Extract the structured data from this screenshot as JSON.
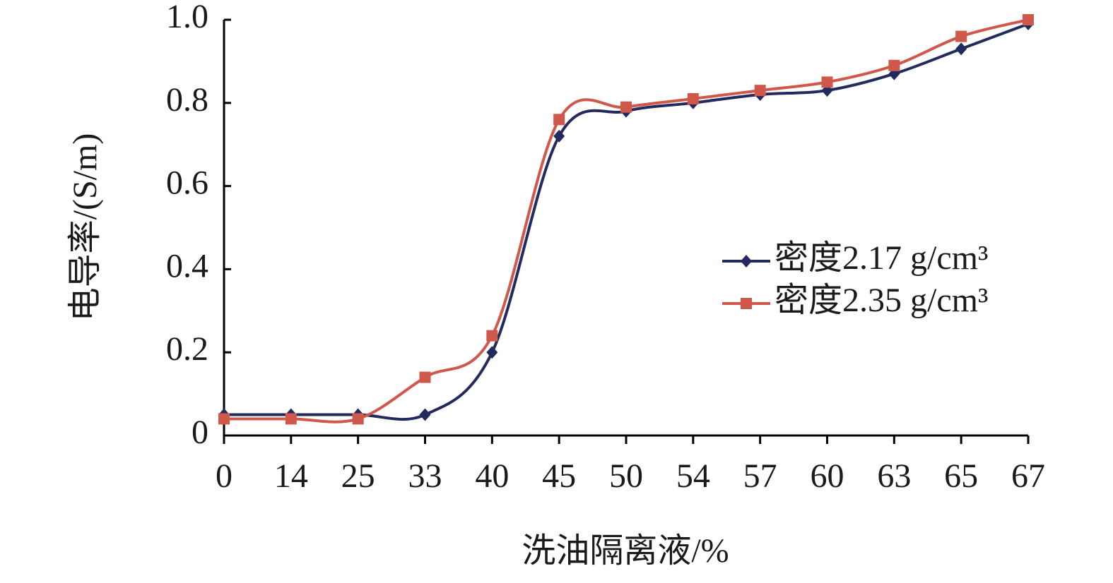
{
  "chart_data": {
    "type": "line",
    "x_label": "洗油隔离液/%",
    "y_label": "电导率/(S/m)",
    "categories": [
      "0",
      "14",
      "25",
      "33",
      "40",
      "45",
      "50",
      "54",
      "57",
      "60",
      "63",
      "65",
      "67"
    ],
    "series": [
      {
        "name": "密度2.17 g/cm³",
        "color": "#232a5e",
        "marker": "diamond",
        "values": [
          0.05,
          0.05,
          0.05,
          0.05,
          0.2,
          0.72,
          0.78,
          0.8,
          0.82,
          0.83,
          0.87,
          0.93,
          0.99
        ]
      },
      {
        "name": "密度2.35 g/cm³",
        "color": "#d0584a",
        "marker": "square",
        "values": [
          0.04,
          0.04,
          0.04,
          0.14,
          0.24,
          0.76,
          0.79,
          0.81,
          0.83,
          0.85,
          0.89,
          0.96,
          1.0
        ]
      }
    ],
    "ylim": [
      0,
      1
    ],
    "yticks": [
      0,
      0.2,
      0.4,
      0.6,
      0.8,
      {
        "value": 1,
        "label": "1.0"
      }
    ],
    "grid": false,
    "smooth": true,
    "legend": "right"
  }
}
